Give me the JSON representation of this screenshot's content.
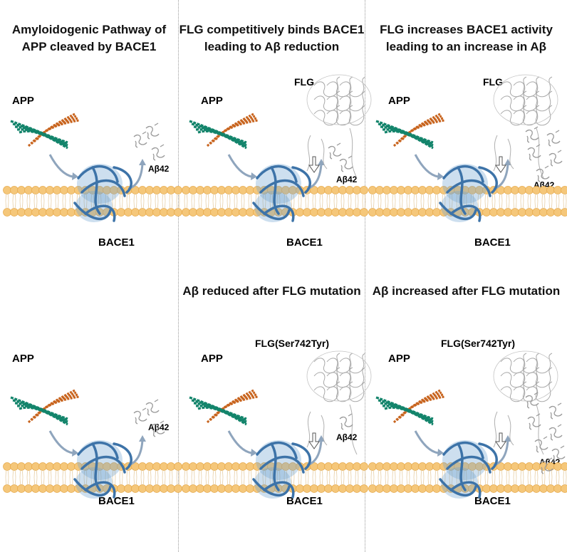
{
  "colors": {
    "app": "#c8641e",
    "app_helix_green": "#13846b",
    "bace1": "#3d73a8",
    "bace1_fill": "#6fa2d1",
    "membrane": "#f5c77a",
    "membrane_stroke": "#e6a94a",
    "arrow": "#8fa5bd",
    "flg": "#8c8c8c",
    "abeta": "#999999",
    "title": "#111111"
  },
  "panels": [
    {
      "title": "Amyloidogenic Pathway of APP cleaved by BACE1",
      "title_lines": [
        "Amyloidogenic Pathway of",
        "APP cleaved by BACE1"
      ],
      "app_label": "APP",
      "bace1_label": "BACE1",
      "abeta_label": "Aβ42",
      "abeta_count": 3
    },
    {
      "title_lines": [
        "FLG competitively binds BACE1",
        "leading to Aβ reduction"
      ],
      "app_label": "APP",
      "flg_label": "FLG",
      "bace1_label": "BACE1",
      "abeta_label": "Aβ42",
      "abeta_count": 2
    },
    {
      "title_lines": [
        "FLG increases BACE1 activity",
        "leading to an increase in Aβ"
      ],
      "app_label": "APP",
      "flg_label": "FLG",
      "bace1_label": "BACE1",
      "abeta_label": "Aβ42",
      "abeta_count": 5
    },
    {
      "title_lines": [],
      "app_label": "APP",
      "bace1_label": "BACE1",
      "abeta_label": "Aβ42",
      "abeta_count": 3
    },
    {
      "title_lines": [
        "Aβ reduced after FLG mutation"
      ],
      "app_label": "APP",
      "flg_label": "FLG(Ser742Tyr)",
      "bace1_label": "BACE1",
      "abeta_label": "Aβ42",
      "abeta_count": 1
    },
    {
      "title_lines": [
        "Aβ increased after FLG mutation"
      ],
      "app_label": "APP",
      "flg_label": "FLG(Ser742Tyr)",
      "bace1_label": "BACE1",
      "abeta_label": "Aβ42",
      "abeta_count": 7
    }
  ]
}
